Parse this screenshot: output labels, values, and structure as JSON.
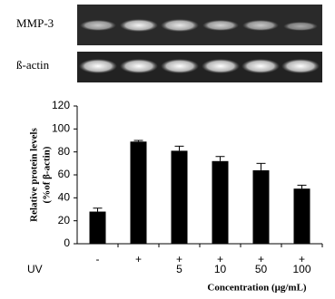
{
  "chart_data": {
    "type": "bar",
    "blots": [
      {
        "label": "MMP-3"
      },
      {
        "label": "ß-actin"
      }
    ],
    "ylabel": [
      "Relative protein levels",
      "(%of β-actin)"
    ],
    "categories": [
      "-",
      "+",
      "+",
      "+",
      "+",
      "+"
    ],
    "row_label": "UV",
    "concentrations": [
      null,
      null,
      "5",
      "10",
      "50",
      "100"
    ],
    "xlabel": "Concentration (μg/mL)",
    "values": [
      28,
      89,
      81,
      72,
      64,
      48
    ],
    "errors": [
      3,
      1,
      4,
      4,
      6,
      3
    ],
    "color": "#000000",
    "ylim": [
      0,
      120
    ],
    "yticks": [
      0,
      20,
      40,
      60,
      80,
      100,
      120
    ]
  }
}
